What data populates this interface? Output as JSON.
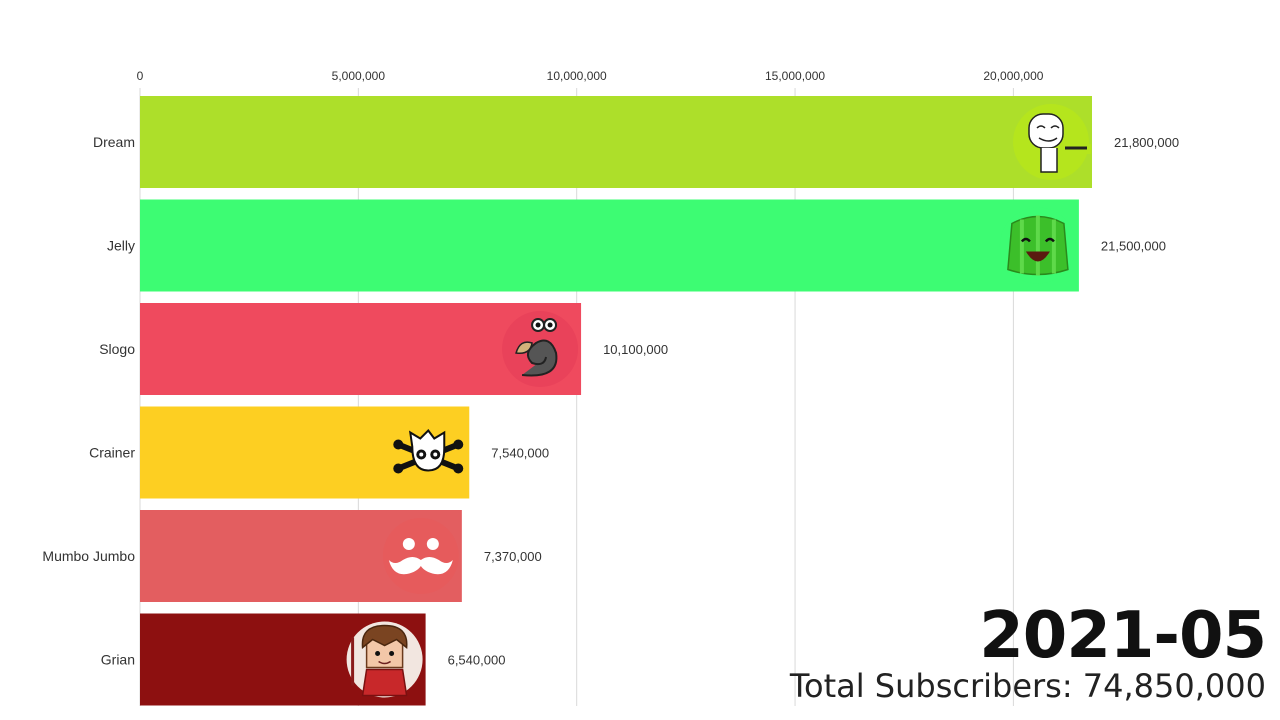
{
  "chart_data": {
    "type": "bar",
    "orientation": "horizontal",
    "categories": [
      "Dream",
      "Jelly",
      "Slogo",
      "Crainer",
      "Mumbo Jumbo",
      "Grian"
    ],
    "values": [
      21800000,
      21500000,
      10100000,
      7540000,
      7370000,
      6540000
    ],
    "value_labels": [
      "21,800,000",
      "21,500,000",
      "10,100,000",
      "7,540,000",
      "7,370,000",
      "6,540,000"
    ],
    "colors": [
      "#addf2a",
      "#3dfc73",
      "#ef4a5e",
      "#fdcf22",
      "#e35e60",
      "#8d1010"
    ],
    "icons": [
      "dream-avatar-icon",
      "jelly-avatar-icon",
      "slogo-avatar-icon",
      "crainer-avatar-icon",
      "mumbo-jumbo-avatar-icon",
      "grian-avatar-icon"
    ],
    "xlim": [
      0,
      21800000
    ],
    "x_ticks": [
      0,
      5000000,
      10000000,
      15000000,
      20000000
    ],
    "x_tick_labels": [
      "0",
      "5,000,000",
      "10,000,000",
      "15,000,000",
      "20,000,000"
    ],
    "axis_position": "top",
    "grid": true,
    "title": "",
    "xlabel": "",
    "ylabel": ""
  },
  "period": "2021-05",
  "total": "Total Subscribers: 74,850,000"
}
